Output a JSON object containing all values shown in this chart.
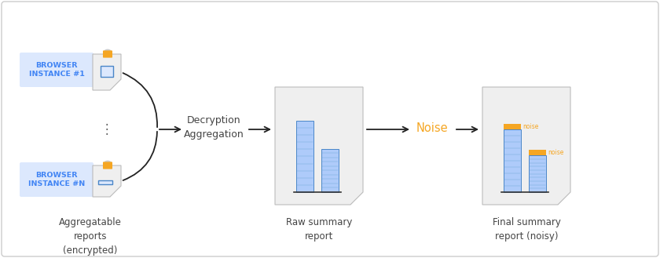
{
  "bg_color": "#ffffff",
  "border_color": "#cccccc",
  "blue_label_bg": "#dce8fd",
  "blue_label_text": "#4285f4",
  "orange_color": "#f5a623",
  "bar_blue": "#aecbfa",
  "bar_border": "#4a86c8",
  "bar_line_color": "#6aa3d5",
  "doc_bg": "#efefef",
  "doc_border": "#bbbbbb",
  "arrow_color": "#222222",
  "noise_text_color": "#f5a623",
  "label1_text": "BROWSER\nINSTANCE #1",
  "label2_text": "BROWSER\nINSTANCE #N",
  "decryption_text": "Decryption\nAggregation",
  "noise_label": "Noise",
  "caption1": "Aggregatable\nreports\n(encrypted)",
  "caption2": "Raw summary\nreport",
  "caption3": "Final summary\nreport (noisy)",
  "lock_orange": "#f5a623",
  "lock_gray": "#cccccc",
  "text_color": "#444444"
}
